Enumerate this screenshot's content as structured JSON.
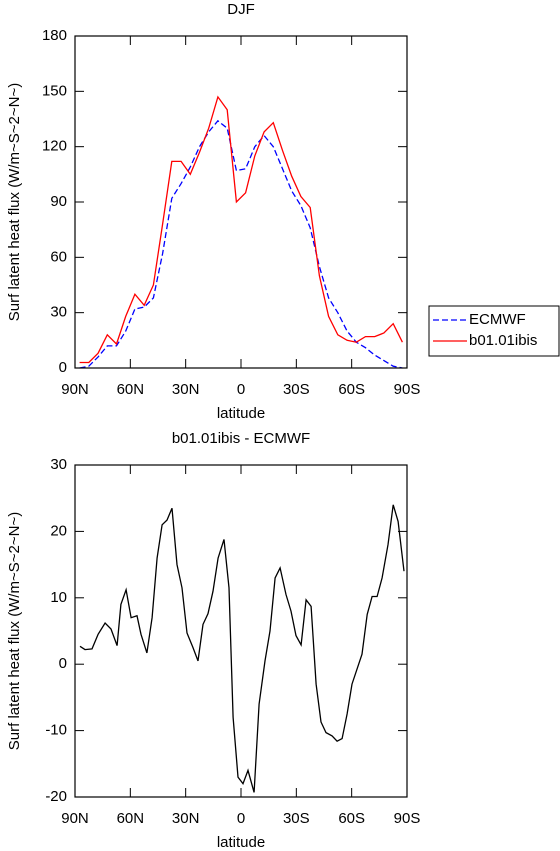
{
  "chart_data": [
    {
      "type": "line",
      "title": "DJF",
      "x_label": "latitude",
      "y_label": "Surf latent heat flux (W/m~S~2~N~)",
      "x": [
        87.5,
        82.5,
        77.5,
        72.5,
        67.5,
        62.5,
        57.5,
        52.5,
        47.5,
        42.5,
        37.5,
        32.5,
        27.5,
        22.5,
        17.5,
        12.5,
        7.5,
        2.5,
        -2.5,
        -7.5,
        -12.5,
        -17.5,
        -22.5,
        -27.5,
        -32.5,
        -37.5,
        -42.5,
        -47.5,
        -52.5,
        -57.5,
        -62.5,
        -67.5,
        -72.5,
        -77.5,
        -82.5,
        -87.5
      ],
      "xlim": [
        90,
        -90
      ],
      "xticks": [
        {
          "value": 90,
          "label": "90N"
        },
        {
          "value": 60,
          "label": "60N"
        },
        {
          "value": 30,
          "label": "30N"
        },
        0,
        {
          "value": -30,
          "label": "30S"
        },
        {
          "value": -60,
          "label": "60S"
        },
        {
          "value": -90,
          "label": "90S"
        }
      ],
      "ylim": [
        0,
        180
      ],
      "yticks": [
        0,
        30,
        60,
        90,
        120,
        150,
        180
      ],
      "legend": "right",
      "series": [
        {
          "name": "ECMWF",
          "color": "#0000ff",
          "line_style": "dashed",
          "values": [
            0,
            1,
            6,
            12,
            12,
            20,
            32,
            33,
            38,
            62,
            92,
            100,
            109,
            120,
            128,
            134,
            130,
            107,
            108,
            120,
            126,
            120,
            108,
            96,
            88,
            76,
            55,
            38,
            30,
            20,
            14,
            11,
            7,
            4,
            1,
            0
          ]
        },
        {
          "name": "b01.01ibis",
          "color": "#ff0000",
          "line_style": "solid",
          "values": [
            3,
            3,
            8,
            18,
            13,
            28,
            40,
            34,
            45,
            78,
            112,
            112,
            105,
            117,
            130,
            147,
            140,
            90,
            95,
            115,
            128,
            133,
            118,
            104,
            93,
            87,
            50,
            28,
            18,
            15,
            14,
            17,
            17,
            19,
            24,
            14
          ]
        }
      ]
    },
    {
      "type": "line",
      "title": "b01.01ibis - ECMWF",
      "x_label": "latitude",
      "y_label": "Surf latent heat flux (W/m~S~2~N~)",
      "x": [
        87.3,
        84.6,
        80.8,
        77.5,
        73.7,
        70.5,
        67.2,
        65.1,
        62.3,
        59.6,
        56.4,
        54.2,
        51.0,
        48.2,
        45.5,
        42.8,
        40.1,
        37.4,
        34.7,
        32.0,
        29.3,
        26.0,
        23.3,
        20.6,
        17.9,
        15.2,
        12.4,
        9.2,
        6.5,
        4.3,
        1.6,
        -1.1,
        -3.8,
        -7.1,
        -9.8,
        -13.0,
        -15.7,
        -18.5,
        -21.2,
        -24.4,
        -27.1,
        -29.8,
        -32.6,
        -35.3,
        -38.0,
        -40.7,
        -43.4,
        -46.1,
        -49.4,
        -52.1,
        -54.8,
        -57.5,
        -60.2,
        -65.6,
        -68.4,
        -71.1,
        -73.8,
        -76.5,
        -79.7,
        -82.5,
        -85.2,
        -88.4
      ],
      "xlim": [
        90,
        -90
      ],
      "xticks": [
        {
          "value": 90,
          "label": "90N"
        },
        {
          "value": 60,
          "label": "60N"
        },
        {
          "value": 30,
          "label": "30N"
        },
        0,
        {
          "value": -30,
          "label": "30S"
        },
        {
          "value": -60,
          "label": "60S"
        },
        {
          "value": -90,
          "label": "90S"
        }
      ],
      "ylim": [
        -20,
        30
      ],
      "yticks": [
        -20,
        -10,
        0,
        10,
        20,
        30
      ],
      "series": [
        {
          "color": "#000000",
          "line_style": "solid",
          "values": [
            2.7,
            2.2,
            2.3,
            4.5,
            6.2,
            5.3,
            2.8,
            9,
            11.2,
            7,
            7.3,
            4.5,
            1.7,
            7,
            16,
            21,
            21.7,
            23.5,
            15,
            11.5,
            4.7,
            2.5,
            0.5,
            6,
            7.6,
            11,
            16,
            18.8,
            11.5,
            -8,
            -17,
            -18,
            -16,
            -19.3,
            -6,
            0.5,
            5,
            13,
            14.5,
            10.5,
            8,
            4.3,
            2.9,
            9.7,
            8.7,
            -3,
            -8.7,
            -10.3,
            -10.8,
            -11.6,
            -11.2,
            -7.5,
            -3,
            1.5,
            7.5,
            10.2,
            10.2,
            13,
            18,
            24,
            21.5,
            14
          ]
        }
      ]
    }
  ]
}
